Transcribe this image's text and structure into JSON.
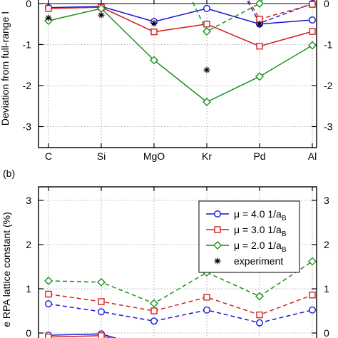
{
  "chart_data": [
    {
      "type": "line",
      "panel_label": "",
      "ylabel": "Deviation from full-range I",
      "categories": [
        "C",
        "Si",
        "MgO",
        "Kr",
        "Pd",
        "Al"
      ],
      "yticks": [
        "0",
        "-1",
        "-2",
        "-3"
      ],
      "ylim": [
        -3.45,
        0.0
      ],
      "grid": true,
      "series": [
        {
          "name": "",
          "style": "solid",
          "marker": "circle",
          "color": "#1515d0",
          "values": [
            -0.1,
            -0.07,
            -0.44,
            -0.12,
            -0.5,
            -0.4
          ]
        },
        {
          "name": "",
          "style": "solid",
          "marker": "square",
          "color": "#d42020",
          "values": [
            -0.12,
            -0.09,
            -0.69,
            -0.5,
            -1.04,
            -0.68
          ]
        },
        {
          "name": "",
          "style": "solid",
          "marker": "diamond",
          "color": "#17921a",
          "values": [
            -0.42,
            -0.12,
            -1.38,
            -2.4,
            -1.78,
            -1.02
          ]
        },
        {
          "name": "",
          "style": "dashed",
          "marker": "circle",
          "color": "#1515d0",
          "values": [
            null,
            null,
            null,
            null,
            -0.48,
            0.0
          ]
        },
        {
          "name": "",
          "style": "dashed",
          "marker": "square",
          "color": "#d42020",
          "values": [
            null,
            null,
            null,
            null,
            -0.38,
            -0.02
          ]
        },
        {
          "name": "",
          "style": "dashed",
          "marker": "diamond",
          "color": "#17921a",
          "values": [
            null,
            null,
            null,
            -0.68,
            0.0,
            null
          ]
        },
        {
          "name": "",
          "style": "none",
          "marker": "star",
          "color": "#000000",
          "values": [
            -0.35,
            -0.28,
            -0.48,
            -1.62,
            -0.5,
            null
          ]
        }
      ]
    },
    {
      "type": "line",
      "panel_label": "(b)",
      "ylabel": "e RPA lattice constant (%)",
      "categories": [
        "C",
        "Si",
        "MgO",
        "Kr",
        "Pd",
        "Al"
      ],
      "yticks": [
        "3",
        "2",
        "1",
        "0"
      ],
      "ylim": [
        0.0,
        3.45
      ],
      "grid": true,
      "series": [
        {
          "name": "μ = 4.0 1/a",
          "sub": "B",
          "style": "dashed",
          "marker": "circle",
          "color": "#1515d0",
          "values": [
            0.66,
            0.48,
            0.27,
            0.52,
            0.23,
            0.52
          ]
        },
        {
          "name": "μ = 3.0 1/a",
          "sub": "B",
          "style": "dashed",
          "marker": "square",
          "color": "#d42020",
          "values": [
            0.88,
            0.71,
            0.5,
            0.81,
            0.41,
            0.86
          ]
        },
        {
          "name": "μ = 2.0 1/a",
          "sub": "B",
          "style": "dashed",
          "marker": "diamond",
          "color": "#17921a",
          "values": [
            1.18,
            1.15,
            0.67,
            1.37,
            0.83,
            1.62
          ]
        },
        {
          "name": "experiment",
          "sub": "",
          "style": "none",
          "marker": "star",
          "color": "#000000",
          "values": [
            null,
            null,
            null,
            null,
            null,
            null
          ]
        },
        {
          "name": "",
          "style": "solid",
          "marker": "circle",
          "color": "#1515d0",
          "values": [
            -0.05,
            -0.02,
            null,
            null,
            null,
            null
          ]
        },
        {
          "name": "",
          "style": "solid",
          "marker": "square",
          "color": "#d42020",
          "values": [
            -0.09,
            -0.06,
            null,
            null,
            null,
            null
          ]
        }
      ]
    }
  ]
}
